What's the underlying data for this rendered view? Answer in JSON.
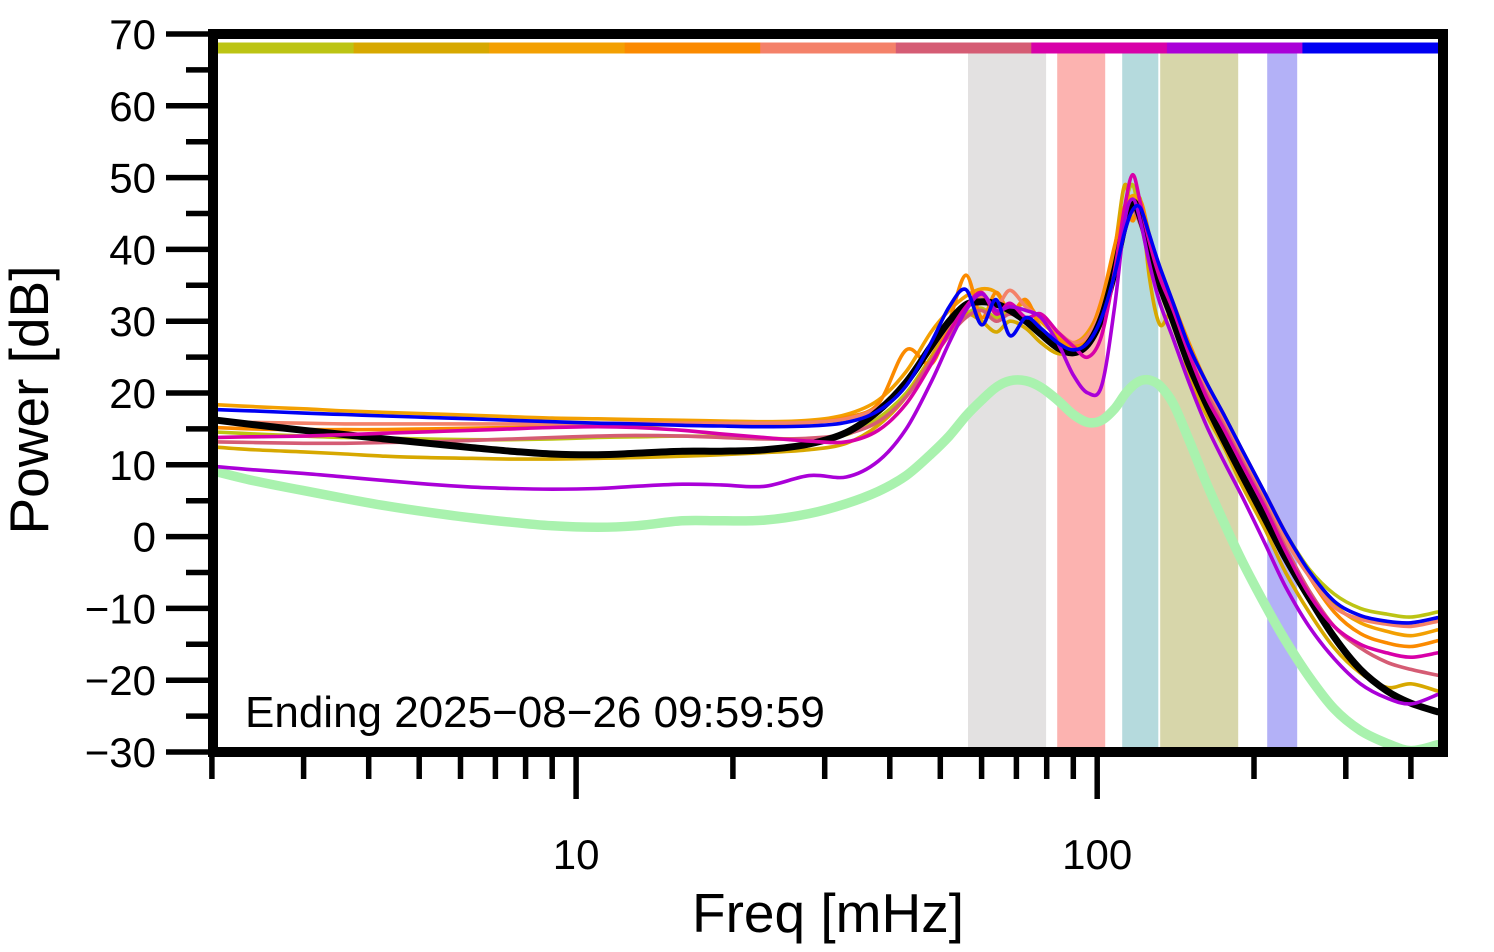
{
  "figure": {
    "annotation": "Ending 2025−08−26 09:59:59",
    "background": "#ffffff"
  },
  "axes": {
    "x": {
      "label": "Freq [mHz]",
      "scale": "log",
      "unit": "mHz",
      "range_mhz": [
        2.01,
        461
      ],
      "major_ticks": [
        10,
        100
      ],
      "major_tick_labels": [
        "10",
        "100"
      ],
      "minor_ticks": [
        2,
        3,
        4,
        5,
        6,
        7,
        8,
        9,
        20,
        30,
        40,
        50,
        60,
        70,
        80,
        90,
        200,
        300,
        400
      ]
    },
    "y": {
      "label": "Power [dB]",
      "range_db": [
        -30,
        70
      ],
      "major_ticks": [
        70,
        60,
        50,
        40,
        30,
        20,
        10,
        0,
        -10,
        -20,
        -30
      ],
      "major_tick_labels": [
        "70",
        "60",
        "50",
        "40",
        "30",
        "20",
        "10",
        "0",
        "−10",
        "−20",
        "−30"
      ],
      "minor_ticks": [
        65,
        55,
        45,
        35,
        25,
        15,
        5,
        -5,
        -15,
        -25
      ]
    }
  },
  "top_bar": {
    "colors": [
      "#bcc414",
      "#d7a800",
      "#f3a002",
      "#fb8a00",
      "#f48169",
      "#d55c74",
      "#d800a8",
      "#aa00d8",
      "#0000f2"
    ]
  },
  "bands": [
    {
      "name": "gray",
      "color": "#e3e1e1",
      "f_start_mhz": 56.5,
      "f_end_mhz": 79.8
    },
    {
      "name": "pink",
      "color": "#fcb3b0",
      "f_start_mhz": 83.8,
      "f_end_mhz": 103.6
    },
    {
      "name": "teal",
      "color": "#b5dadd",
      "f_start_mhz": 111.7,
      "f_end_mhz": 131.0
    },
    {
      "name": "olive",
      "color": "#d7d6aa",
      "f_start_mhz": 132.1,
      "f_end_mhz": 186.5
    },
    {
      "name": "lavender",
      "color": "#b3b1f7",
      "f_start_mhz": 212.0,
      "f_end_mhz": 242.0
    }
  ],
  "chart_data": {
    "type": "line",
    "title": "",
    "xlabel": "Freq [mHz]",
    "ylabel": "Power [dB]",
    "x_scale": "log",
    "xlim_mhz": [
      2.01,
      461
    ],
    "ylim_db": [
      -30,
      70
    ],
    "grid": false,
    "legend": "none",
    "frequencies_mhz": [
      2,
      2.4,
      3,
      3.6,
      4.3,
      5.2,
      6.3,
      7.5,
      9,
      11,
      13,
      16,
      19,
      23,
      28,
      33,
      38,
      43,
      48,
      52,
      56,
      60,
      64,
      68,
      73,
      78,
      84,
      90,
      96,
      102,
      108,
      113,
      117,
      121,
      126,
      132,
      140,
      150,
      162,
      175,
      190,
      210,
      230,
      255,
      285,
      320,
      360,
      400,
      450
    ],
    "series": [
      {
        "name": "reference",
        "color": "#a9f2ae",
        "width": 9.5,
        "values_db": [
          9.2,
          7.8,
          6.4,
          5.3,
          4.3,
          3.4,
          2.6,
          2.0,
          1.5,
          1.3,
          1.5,
          2.2,
          2.2,
          2.3,
          3.2,
          4.6,
          6.3,
          8.5,
          11.5,
          14.0,
          16.8,
          19.0,
          20.8,
          21.7,
          21.7,
          20.8,
          19.0,
          17.0,
          15.9,
          16.2,
          17.8,
          19.8,
          21.0,
          21.7,
          21.8,
          21.0,
          18.5,
          13.5,
          7.5,
          2.0,
          -3.5,
          -9.5,
          -14.5,
          -19.5,
          -24.0,
          -27.0,
          -28.8,
          -29.8,
          -29.0
        ]
      },
      {
        "name": "segment-1",
        "color": "#bcc414",
        "width": 3.6,
        "values_db": [
          14.6,
          14.3,
          14.0,
          13.8,
          13.7,
          13.6,
          13.5,
          13.5,
          13.6,
          13.8,
          13.9,
          14.0,
          13.9,
          13.7,
          13.6,
          14.2,
          16.5,
          20.0,
          25.0,
          28.5,
          31.0,
          31.8,
          30.5,
          31.5,
          30.0,
          28.5,
          26.5,
          26.0,
          27.5,
          31.5,
          38.5,
          46.0,
          49.0,
          44.0,
          38.5,
          34.5,
          30.5,
          25.0,
          20.0,
          16.0,
          11.0,
          5.5,
          0.5,
          -4.5,
          -8.0,
          -10.0,
          -10.8,
          -11.2,
          -10.5
        ]
      },
      {
        "name": "segment-2",
        "color": "#d7a800",
        "width": 3.6,
        "values_db": [
          12.5,
          12.1,
          11.8,
          11.5,
          11.2,
          11.0,
          10.9,
          10.8,
          10.8,
          10.9,
          11.0,
          11.2,
          11.4,
          11.7,
          12.1,
          13.0,
          15.5,
          19.5,
          25.0,
          29.0,
          31.0,
          30.0,
          28.5,
          30.0,
          29.0,
          27.0,
          25.5,
          25.8,
          27.5,
          32.0,
          40.0,
          49.0,
          44.0,
          47.0,
          36.0,
          29.5,
          31.0,
          22.5,
          17.0,
          12.5,
          7.0,
          1.0,
          -5.0,
          -10.5,
          -15.5,
          -19.0,
          -21.0,
          -20.5,
          -21.5
        ]
      },
      {
        "name": "segment-3",
        "color": "#f3a002",
        "width": 3.6,
        "values_db": [
          18.4,
          18.1,
          17.8,
          17.5,
          17.3,
          17.1,
          16.9,
          16.7,
          16.5,
          16.4,
          16.3,
          16.2,
          16.1,
          16.0,
          16.2,
          17.0,
          19.0,
          23.0,
          28.5,
          31.5,
          33.5,
          34.5,
          34.0,
          31.5,
          32.5,
          30.0,
          28.0,
          27.0,
          28.5,
          32.5,
          39.5,
          45.5,
          47.5,
          46.0,
          41.0,
          36.5,
          32.0,
          26.0,
          21.0,
          16.5,
          11.5,
          5.5,
          0.0,
          -5.0,
          -9.5,
          -12.0,
          -13.2,
          -13.8,
          -13.0
        ]
      },
      {
        "name": "segment-4",
        "color": "#fb8a00",
        "width": 3.6,
        "values_db": [
          15.2,
          15.0,
          14.9,
          14.9,
          14.9,
          15.0,
          15.1,
          15.2,
          15.3,
          15.4,
          15.5,
          15.6,
          15.6,
          15.7,
          15.9,
          16.6,
          18.5,
          26.0,
          24.0,
          30.0,
          36.4,
          30.5,
          34.0,
          31.0,
          33.0,
          29.0,
          27.5,
          26.5,
          28.0,
          33.0,
          40.5,
          46.0,
          44.0,
          46.8,
          42.0,
          37.0,
          32.5,
          27.0,
          21.5,
          17.0,
          12.0,
          6.0,
          0.5,
          -5.5,
          -10.5,
          -13.5,
          -14.8,
          -15.3,
          -14.5
        ]
      },
      {
        "name": "segment-5",
        "color": "#f48169",
        "width": 3.6,
        "values_db": [
          16.1,
          15.9,
          15.8,
          15.7,
          15.7,
          15.7,
          15.7,
          15.7,
          15.7,
          15.8,
          15.8,
          15.8,
          15.8,
          15.8,
          15.9,
          16.4,
          18.0,
          21.5,
          26.0,
          29.5,
          32.0,
          33.5,
          32.0,
          34.3,
          32.0,
          30.5,
          28.5,
          27.0,
          28.0,
          31.5,
          38.0,
          44.0,
          46.0,
          44.5,
          40.5,
          36.0,
          31.5,
          25.5,
          20.5,
          16.0,
          11.0,
          5.0,
          -0.5,
          -5.5,
          -9.8,
          -11.5,
          -12.2,
          -12.5,
          -11.8
        ]
      },
      {
        "name": "segment-6",
        "color": "#d55c74",
        "width": 3.6,
        "values_db": [
          13.2,
          13.1,
          13.0,
          13.0,
          13.1,
          13.2,
          13.4,
          13.6,
          13.8,
          14.0,
          14.1,
          14.0,
          13.8,
          13.6,
          13.7,
          14.3,
          16.0,
          19.5,
          24.5,
          28.0,
          30.5,
          31.5,
          30.0,
          31.0,
          30.0,
          28.5,
          26.5,
          25.5,
          26.5,
          30.0,
          36.5,
          42.5,
          45.3,
          43.5,
          39.5,
          35.5,
          31.0,
          25.0,
          20.0,
          15.5,
          10.5,
          4.5,
          -1.5,
          -7.5,
          -12.5,
          -15.5,
          -17.5,
          -18.5,
          -19.3
        ]
      },
      {
        "name": "mean",
        "color": "#000000",
        "width": 7,
        "values_db": [
          16.3,
          15.6,
          14.8,
          14.2,
          13.6,
          13.0,
          12.4,
          11.9,
          11.5,
          11.4,
          11.6,
          11.9,
          11.9,
          12.1,
          12.9,
          14.5,
          17.5,
          21.5,
          26.5,
          30.0,
          32.3,
          32.7,
          32.4,
          31.5,
          30.0,
          28.2,
          26.3,
          25.6,
          26.8,
          30.5,
          37.0,
          43.5,
          46.6,
          44.5,
          40.0,
          35.0,
          30.0,
          24.0,
          18.5,
          13.5,
          8.5,
          2.5,
          -3.0,
          -8.5,
          -14.0,
          -18.5,
          -21.5,
          -23.2,
          -24.4
        ]
      },
      {
        "name": "segment-7",
        "color": "#d800a8",
        "width": 3.6,
        "values_db": [
          13.8,
          13.9,
          14.0,
          14.2,
          14.4,
          14.6,
          14.8,
          15.0,
          15.2,
          15.3,
          15.2,
          14.8,
          14.3,
          13.8,
          13.3,
          13.2,
          14.8,
          18.5,
          24.0,
          28.5,
          32.0,
          34.0,
          31.0,
          32.5,
          30.5,
          31.0,
          28.5,
          26.5,
          25.0,
          28.0,
          37.0,
          46.0,
          50.4,
          46.5,
          41.0,
          36.0,
          31.5,
          25.5,
          19.5,
          15.0,
          10.0,
          4.0,
          -2.0,
          -8.0,
          -12.5,
          -15.0,
          -16.2,
          -16.8,
          -16.2
        ]
      },
      {
        "name": "segment-8",
        "color": "#aa00d8",
        "width": 3.6,
        "values_db": [
          9.8,
          9.3,
          8.8,
          8.3,
          7.8,
          7.3,
          6.9,
          6.7,
          6.6,
          6.7,
          7.0,
          7.3,
          7.2,
          7.0,
          8.5,
          8.3,
          10.5,
          15.0,
          21.5,
          27.0,
          31.5,
          33.8,
          31.5,
          32.0,
          31.5,
          30.5,
          27.0,
          22.5,
          20.0,
          21.0,
          32.0,
          44.0,
          47.0,
          44.0,
          38.0,
          32.5,
          27.5,
          21.5,
          15.5,
          10.5,
          5.5,
          -1.0,
          -7.0,
          -12.5,
          -17.0,
          -20.5,
          -22.5,
          -23.3,
          -22.0
        ]
      },
      {
        "name": "segment-9",
        "color": "#0000f2",
        "width": 3.6,
        "values_db": [
          17.7,
          17.5,
          17.2,
          17.0,
          16.8,
          16.6,
          16.4,
          16.2,
          16.0,
          15.8,
          15.7,
          15.5,
          15.4,
          15.3,
          15.4,
          15.9,
          17.5,
          21.0,
          27.0,
          32.0,
          34.4,
          29.5,
          33.0,
          28.0,
          30.5,
          29.0,
          27.0,
          26.0,
          27.0,
          30.5,
          36.5,
          42.5,
          45.5,
          45.8,
          42.0,
          37.5,
          32.5,
          26.5,
          21.5,
          17.0,
          12.0,
          6.0,
          0.5,
          -4.8,
          -9.0,
          -11.0,
          -11.8,
          -12.0,
          -11.3
        ]
      }
    ]
  }
}
